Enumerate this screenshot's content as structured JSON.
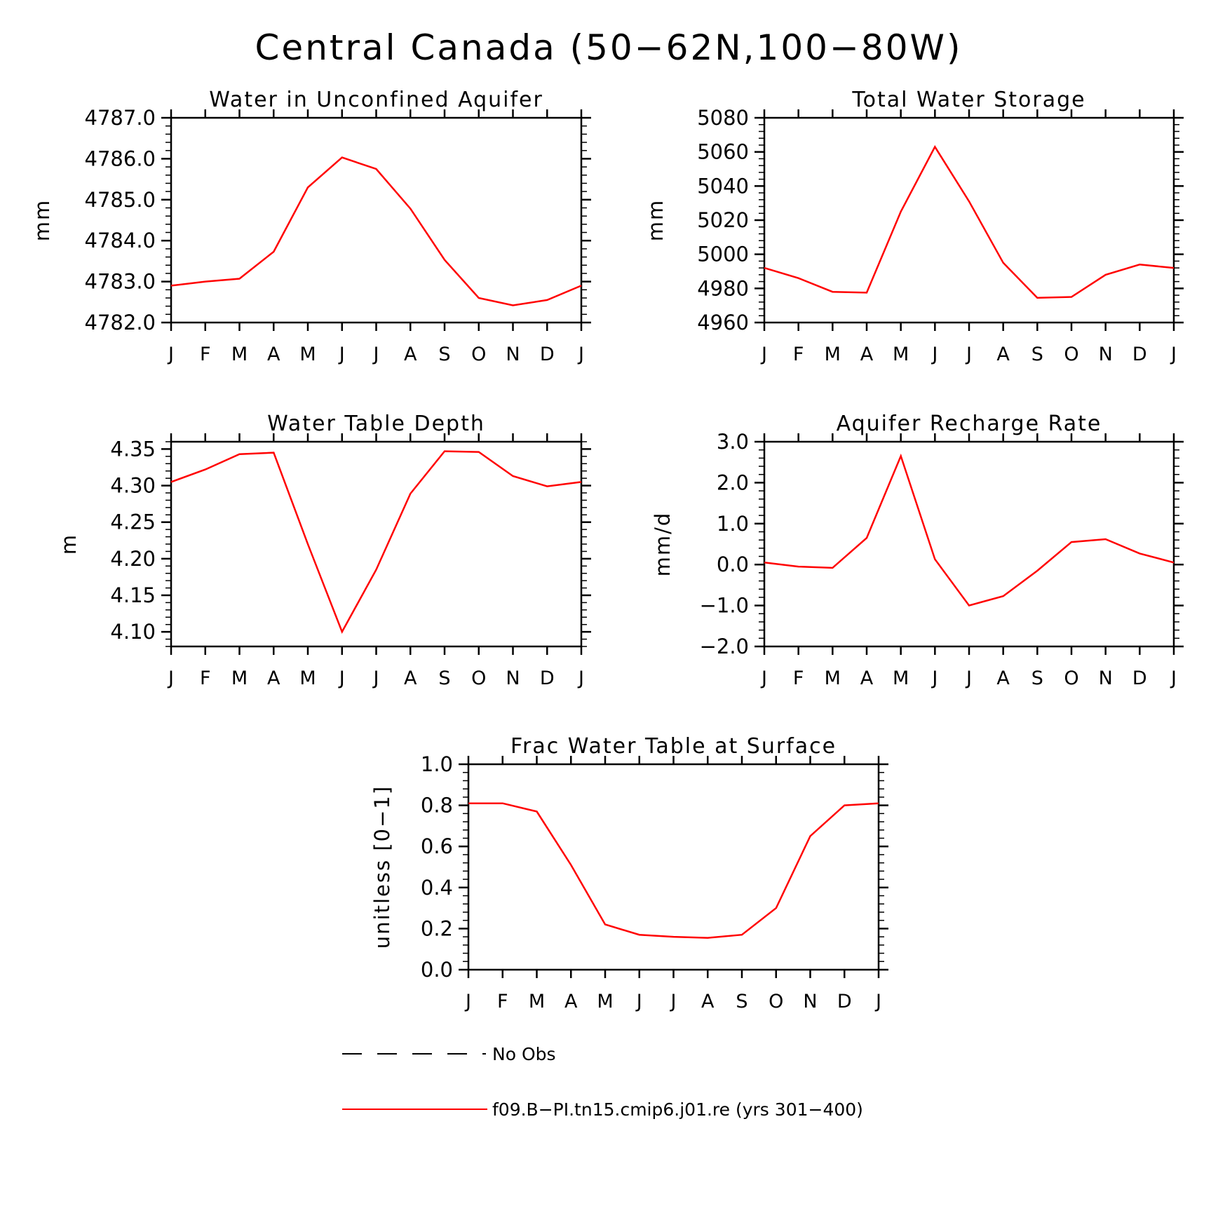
{
  "figure": {
    "title": "Central Canada (50−62N,100−80W)",
    "line_color": "#ff0000"
  },
  "legend": {
    "items": [
      {
        "label": "No Obs",
        "style": "dashed",
        "color": "#000000"
      },
      {
        "label": "f09.B−PI.tn15.cmip6.j01.re (yrs 301−400)",
        "style": "solid",
        "color": "#ff0000"
      }
    ]
  },
  "chart_data": [
    {
      "type": "line",
      "title": "Water in Unconfined Aquifer",
      "ylabel": "mm",
      "categories": [
        "J",
        "F",
        "M",
        "A",
        "M",
        "J",
        "J",
        "A",
        "S",
        "O",
        "N",
        "D",
        "J"
      ],
      "ylim": [
        4782.0,
        4787.0
      ],
      "yticks": [
        4782.0,
        4783.0,
        4784.0,
        4785.0,
        4786.0,
        4787.0
      ],
      "ytick_labels": [
        "4782.0",
        "4783.0",
        "4784.0",
        "4785.0",
        "4786.0",
        "4787.0"
      ],
      "series": [
        {
          "values": [
            4782.9,
            4783.0,
            4783.07,
            4783.73,
            4785.3,
            4786.03,
            4785.75,
            4784.78,
            4783.53,
            4782.6,
            4782.42,
            4782.55,
            4782.9
          ]
        }
      ]
    },
    {
      "type": "line",
      "title": "Total Water Storage",
      "ylabel": "mm",
      "categories": [
        "J",
        "F",
        "M",
        "A",
        "M",
        "J",
        "J",
        "A",
        "S",
        "O",
        "N",
        "D",
        "J"
      ],
      "ylim": [
        4960,
        5080
      ],
      "yticks": [
        4960,
        4980,
        5000,
        5020,
        5040,
        5060,
        5080
      ],
      "ytick_labels": [
        "4960",
        "4980",
        "5000",
        "5020",
        "5040",
        "5060",
        "5080"
      ],
      "series": [
        {
          "values": [
            4992,
            4986,
            4978,
            4977.5,
            5025,
            5063,
            5031,
            4995,
            4974.5,
            4975,
            4988,
            4994,
            4992
          ]
        }
      ]
    },
    {
      "type": "line",
      "title": "Water Table Depth",
      "ylabel": "m",
      "categories": [
        "J",
        "F",
        "M",
        "A",
        "M",
        "J",
        "J",
        "A",
        "S",
        "O",
        "N",
        "D",
        "J"
      ],
      "ylim": [
        4.08,
        4.36
      ],
      "yticks": [
        4.1,
        4.15,
        4.2,
        4.25,
        4.3,
        4.35
      ],
      "ytick_labels": [
        "4.10",
        "4.15",
        "4.20",
        "4.25",
        "4.30",
        "4.35"
      ],
      "series": [
        {
          "values": [
            4.305,
            4.322,
            4.343,
            4.345,
            4.22,
            4.1,
            4.185,
            4.289,
            4.347,
            4.346,
            4.313,
            4.299,
            4.305
          ]
        }
      ]
    },
    {
      "type": "line",
      "title": "Aquifer Recharge Rate",
      "ylabel": "mm/d",
      "categories": [
        "J",
        "F",
        "M",
        "A",
        "M",
        "J",
        "J",
        "A",
        "S",
        "O",
        "N",
        "D",
        "J"
      ],
      "ylim": [
        -2.0,
        3.0
      ],
      "yticks": [
        -2.0,
        -1.0,
        0.0,
        1.0,
        2.0,
        3.0
      ],
      "ytick_labels": [
        "−2.0",
        "−1.0",
        "0.0",
        "1.0",
        "2.0",
        "3.0"
      ],
      "series": [
        {
          "values": [
            0.05,
            -0.05,
            -0.08,
            0.65,
            2.65,
            0.13,
            -1.0,
            -0.77,
            -0.15,
            0.55,
            0.62,
            0.27,
            0.05
          ]
        }
      ]
    },
    {
      "type": "line",
      "title": "Frac Water Table at Surface",
      "ylabel": "unitless [0−1]",
      "categories": [
        "J",
        "F",
        "M",
        "A",
        "M",
        "J",
        "J",
        "A",
        "S",
        "O",
        "N",
        "D",
        "J"
      ],
      "ylim": [
        0.0,
        1.0
      ],
      "yticks": [
        0.0,
        0.2,
        0.4,
        0.6,
        0.8,
        1.0
      ],
      "ytick_labels": [
        "0.0",
        "0.2",
        "0.4",
        "0.6",
        "0.8",
        "1.0"
      ],
      "series": [
        {
          "values": [
            0.81,
            0.81,
            0.77,
            0.51,
            0.22,
            0.17,
            0.16,
            0.155,
            0.17,
            0.3,
            0.65,
            0.8,
            0.81
          ]
        }
      ]
    }
  ]
}
